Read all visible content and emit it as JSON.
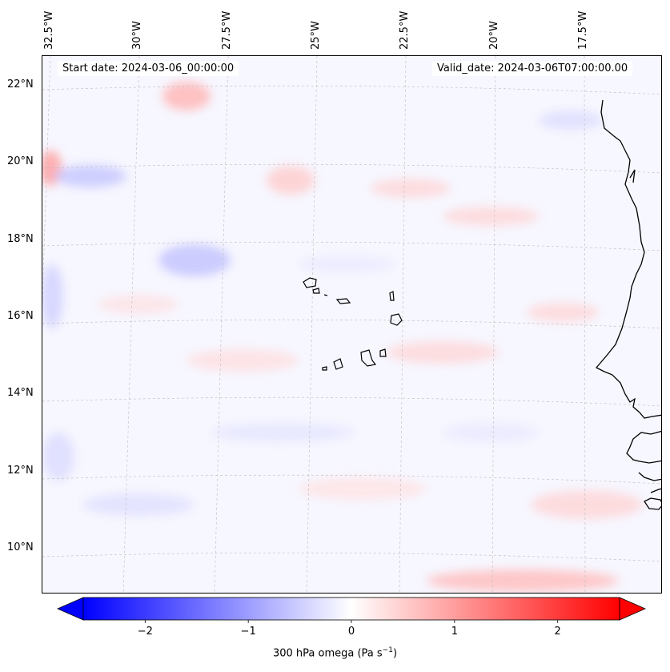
{
  "header": {
    "start_date": "Start date: 2024-03-06_00:00:00",
    "valid_date": "Valid_date: 2024-03-06T07:00:00.00"
  },
  "map": {
    "projection": "lambert-conic",
    "field": "300 hPa omega",
    "units": "Pa s⁻¹",
    "longitude_labels": [
      "32.5°W",
      "30°W",
      "27.5°W",
      "25°W",
      "22.5°W",
      "20°W",
      "17.5°W"
    ],
    "latitude_labels": [
      "22°N",
      "20°N",
      "18°N",
      "16°N",
      "14°N",
      "12°N",
      "10°N"
    ],
    "features": [
      "cape-verde-islands",
      "west-africa-coastline"
    ]
  },
  "colorbar": {
    "ticks": [
      "−2",
      "−1",
      "0",
      "1",
      "2"
    ],
    "tick_values": [
      -2,
      -1,
      0,
      1,
      2
    ],
    "range": [
      -2.6,
      2.6
    ],
    "label_main": "300 hPa omega (Pa s",
    "label_sup": "−1",
    "label_end": ")",
    "colors": {
      "negative": "#0000ff",
      "zero": "#ffffff",
      "positive": "#ff0000"
    }
  }
}
